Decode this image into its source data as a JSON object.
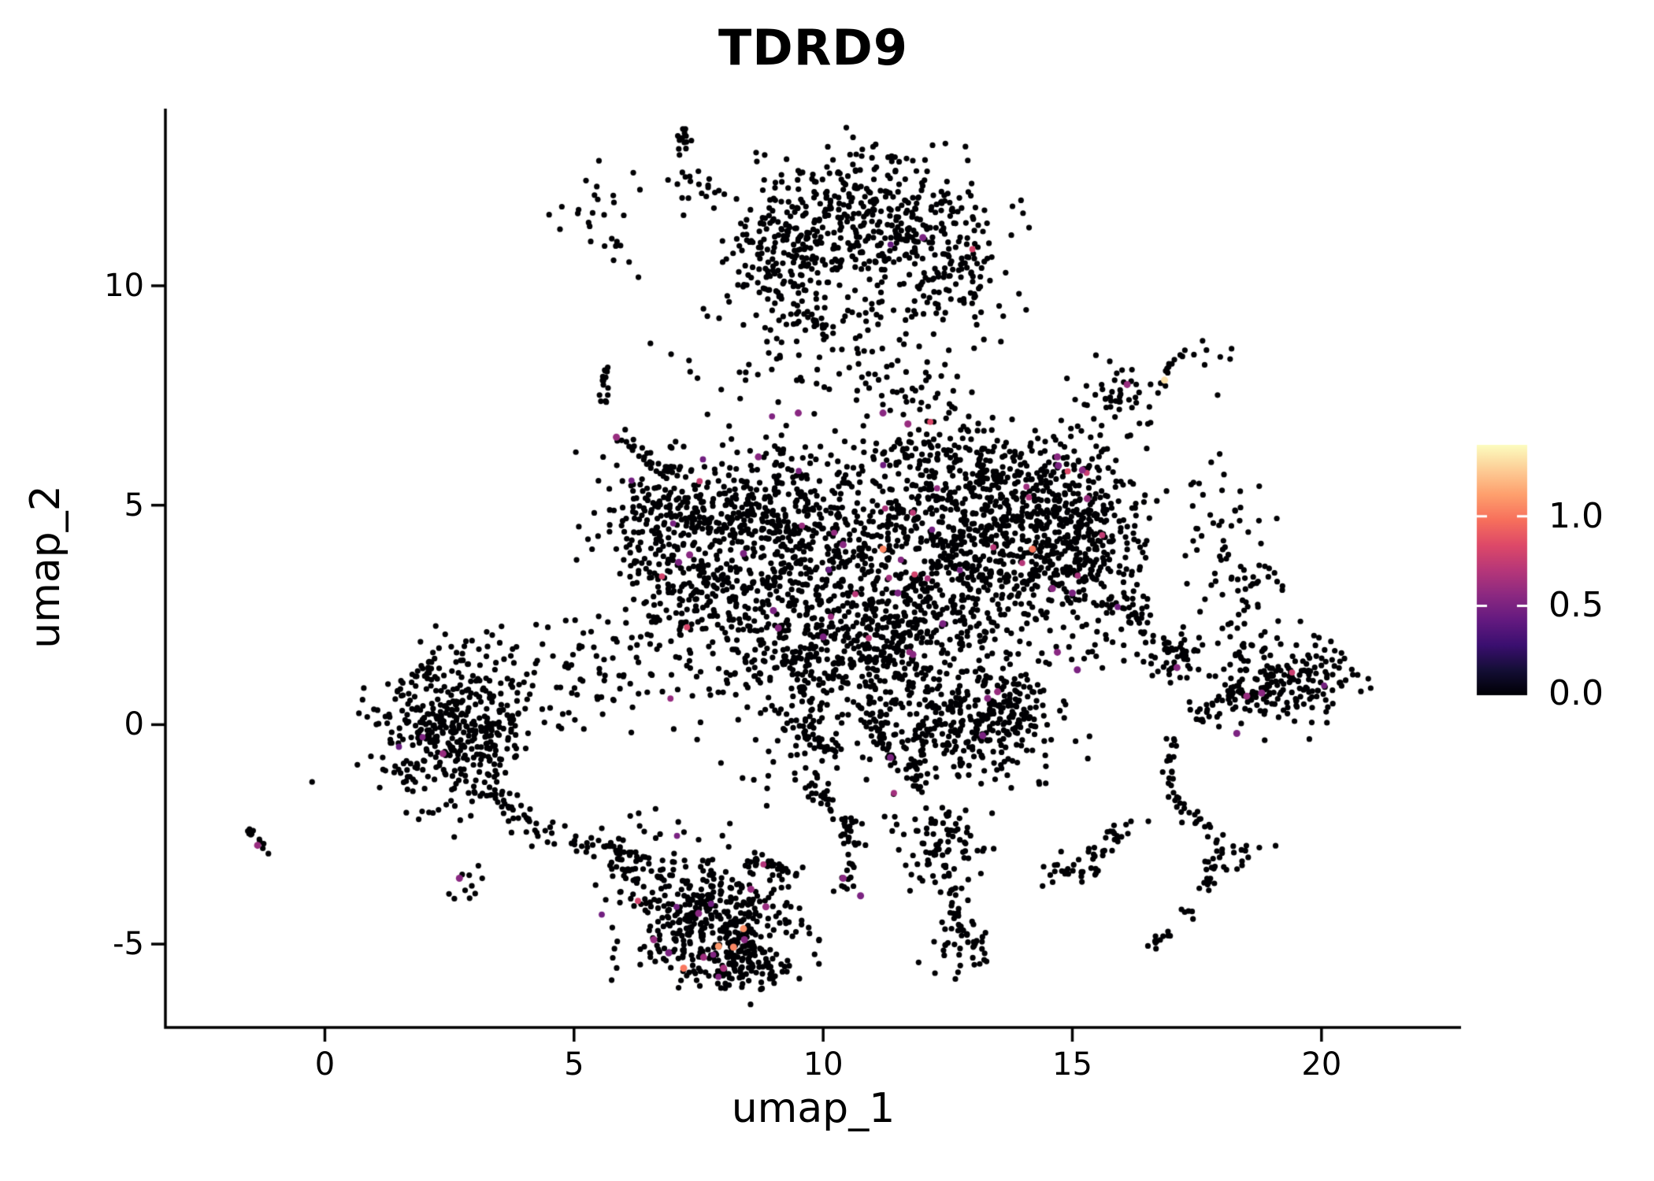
{
  "seed": 42,
  "chart_data": {
    "type": "scatter",
    "title": "TDRD9",
    "xlabel": "umap_1",
    "ylabel": "umap_2",
    "xlim": [
      -3.2,
      22.8
    ],
    "ylim": [
      -6.9,
      14.0
    ],
    "grid": false,
    "legend_position": "right",
    "x_tick_values": [
      0,
      5,
      10,
      15,
      20
    ],
    "x_tick_labels": [
      "0",
      "5",
      "10",
      "15",
      "20"
    ],
    "y_tick_values": [
      10,
      5,
      0,
      -5
    ],
    "y_tick_labels": [
      "10",
      "5",
      "0",
      "-5"
    ],
    "point_color_zero": "#000004",
    "point_radius_px": 3.6,
    "colorbar": {
      "position": "right",
      "vmin": 0.0,
      "vmax": 1.4,
      "tick_values": [
        1.0,
        0.5,
        0.0
      ],
      "tick_labels": [
        "1.0",
        "0.5",
        "0.0"
      ],
      "colormap": "magma",
      "stops": [
        [
          0,
          "#000004"
        ],
        [
          0.1,
          "#140e36"
        ],
        [
          0.2,
          "#3b0f70"
        ],
        [
          0.3,
          "#641a80"
        ],
        [
          0.4,
          "#8c2981"
        ],
        [
          0.5,
          "#b73779"
        ],
        [
          0.6,
          "#de4968"
        ],
        [
          0.7,
          "#f7705c"
        ],
        [
          0.8,
          "#fe9f6d"
        ],
        [
          0.9,
          "#fdcd96"
        ],
        [
          1,
          "#fcfdbf"
        ]
      ]
    },
    "clusters": [
      {
        "kind": "blob",
        "name": "top-core",
        "c": [
          10.6,
          11.3
        ],
        "sd": [
          1.15,
          0.85
        ],
        "n": 420,
        "cf": 0.005
      },
      {
        "kind": "blob",
        "name": "top-right-lobe",
        "c": [
          12.6,
          10.5
        ],
        "sd": [
          0.7,
          0.9
        ],
        "n": 140,
        "cf": 0.004
      },
      {
        "kind": "blob",
        "name": "top-left-lobe",
        "c": [
          9.0,
          10.7
        ],
        "sd": [
          0.6,
          0.65
        ],
        "n": 90,
        "cf": 0
      },
      {
        "kind": "blob",
        "name": "top-small-clump",
        "c": [
          7.6,
          12.2
        ],
        "sd": [
          0.3,
          0.25
        ],
        "n": 18,
        "cf": 0
      },
      {
        "kind": "blob",
        "name": "top-far-left",
        "c": [
          5.6,
          11.6
        ],
        "sd": [
          0.45,
          0.7
        ],
        "n": 28,
        "cf": 0
      },
      {
        "kind": "blob",
        "name": "top-bridge",
        "c": [
          10.3,
          8.6
        ],
        "sd": [
          1.4,
          0.75
        ],
        "n": 100,
        "cf": 0.005
      },
      {
        "kind": "blob",
        "name": "upper-right-islet",
        "c": [
          15.9,
          7.55
        ],
        "sd": [
          0.5,
          0.33
        ],
        "n": 45,
        "cf": 0
      },
      {
        "kind": "blob",
        "name": "upper-right-dots",
        "c": [
          17.9,
          8.5
        ],
        "sd": [
          0.25,
          0.18
        ],
        "n": 7,
        "cf": 0
      },
      {
        "kind": "blob",
        "name": "mid-left",
        "c": [
          8.7,
          4.7
        ],
        "sd": [
          1.05,
          0.9
        ],
        "n": 420,
        "cf": 0.012
      },
      {
        "kind": "blob",
        "name": "mid-center",
        "c": [
          11.3,
          3.1
        ],
        "sd": [
          1.5,
          1.25
        ],
        "n": 650,
        "cf": 0.013
      },
      {
        "kind": "blob",
        "name": "mid-right",
        "c": [
          13.7,
          4.3
        ],
        "sd": [
          1.15,
          1.0
        ],
        "n": 520,
        "cf": 0.012
      },
      {
        "kind": "blob",
        "name": "mid-lower",
        "c": [
          10.3,
          1.3
        ],
        "sd": [
          1.2,
          0.95
        ],
        "n": 330,
        "cf": 0.012
      },
      {
        "kind": "blob",
        "name": "mid-left-arm-low",
        "c": [
          7.4,
          2.9
        ],
        "sd": [
          0.8,
          0.9
        ],
        "n": 180,
        "cf": 0.01
      },
      {
        "kind": "blob",
        "name": "mid-left-arm-up",
        "c": [
          6.7,
          4.6
        ],
        "sd": [
          0.55,
          0.6
        ],
        "n": 120,
        "cf": 0.008
      },
      {
        "kind": "blob",
        "name": "mid-top-shelf",
        "c": [
          12.5,
          5.9
        ],
        "sd": [
          0.95,
          0.55
        ],
        "n": 160,
        "cf": 0.008
      },
      {
        "kind": "blob",
        "name": "mid-right-top-lobe",
        "c": [
          14.9,
          5.3
        ],
        "sd": [
          0.6,
          0.7
        ],
        "n": 140,
        "cf": 0.012
      },
      {
        "kind": "blob",
        "name": "mid-right-lobe",
        "c": [
          15.5,
          3.6
        ],
        "sd": [
          0.6,
          0.95
        ],
        "n": 150,
        "cf": 0.012
      },
      {
        "kind": "blob",
        "name": "low-mid-lobe",
        "c": [
          12.45,
          -0.1
        ],
        "sd": [
          0.6,
          0.6
        ],
        "n": 130,
        "cf": 0.01
      },
      {
        "kind": "blob",
        "name": "low-mid-right-lobe",
        "c": [
          13.7,
          0.2
        ],
        "sd": [
          0.55,
          0.65
        ],
        "n": 170,
        "cf": 0.01
      },
      {
        "kind": "blob",
        "name": "mid-sparse-fill",
        "c": [
          10.8,
          3.2
        ],
        "sd": [
          2.6,
          2.2
        ],
        "n": 240,
        "cf": 0.008
      },
      {
        "kind": "blob",
        "name": "below-chain-clump",
        "c": [
          12.35,
          -2.8
        ],
        "sd": [
          0.45,
          0.6
        ],
        "n": 90,
        "cf": 0
      },
      {
        "kind": "blob",
        "name": "below-chain-tip",
        "c": [
          12.9,
          -5.0
        ],
        "sd": [
          0.3,
          0.28
        ],
        "n": 40,
        "cf": 0
      },
      {
        "kind": "blob",
        "name": "left-cluster",
        "c": [
          2.6,
          -0.1
        ],
        "sd": [
          0.78,
          0.82
        ],
        "n": 430,
        "cf": 0.004
      },
      {
        "kind": "blob",
        "name": "left-bridge",
        "c": [
          5.0,
          1.2
        ],
        "sd": [
          0.7,
          0.65
        ],
        "n": 65,
        "cf": 0
      },
      {
        "kind": "blob",
        "name": "left-stray",
        "c": [
          2.9,
          -3.6
        ],
        "sd": [
          0.35,
          0.3
        ],
        "n": 10,
        "cf": 0
      },
      {
        "kind": "blob",
        "name": "bottom-core",
        "c": [
          7.8,
          -4.6
        ],
        "sd": [
          0.78,
          0.62
        ],
        "n": 380,
        "cf": 0.015
      },
      {
        "kind": "blob",
        "name": "bottom-tip",
        "c": [
          8.3,
          -5.5
        ],
        "sd": [
          0.5,
          0.3
        ],
        "n": 90,
        "cf": 0.01
      },
      {
        "kind": "blob",
        "name": "bottom-top-fringe",
        "c": [
          7.0,
          -3.3
        ],
        "sd": [
          0.8,
          0.5
        ],
        "n": 90,
        "cf": 0.008
      },
      {
        "kind": "blob",
        "name": "right-cluster",
        "c": [
          19.2,
          1.0
        ],
        "sd": [
          0.8,
          0.5
        ],
        "n": 210,
        "cf": 0.004
      },
      {
        "kind": "blob",
        "name": "right-upper-sparse",
        "c": [
          17.9,
          4.5
        ],
        "sd": [
          0.5,
          0.85
        ],
        "n": 45,
        "cf": 0
      },
      {
        "kind": "blob",
        "name": "right-upper-sparse2",
        "c": [
          18.6,
          2.9
        ],
        "sd": [
          0.4,
          0.5
        ],
        "n": 35,
        "cf": 0
      },
      {
        "kind": "blob",
        "name": "right-tip-clump",
        "c": [
          17.0,
          1.6
        ],
        "sd": [
          0.35,
          0.35
        ],
        "n": 30,
        "cf": 0
      },
      {
        "kind": "blob",
        "name": "right-chain-clump1",
        "c": [
          15.0,
          -3.3
        ],
        "sd": [
          0.32,
          0.27
        ],
        "n": 25,
        "cf": 0
      },
      {
        "kind": "blob",
        "name": "right-chain-clump2",
        "c": [
          18.4,
          -2.9
        ],
        "sd": [
          0.25,
          0.2
        ],
        "n": 14,
        "cf": 0
      },
      {
        "kind": "blob",
        "name": "mid-upper-scatter",
        "c": [
          12.2,
          7.3
        ],
        "sd": [
          0.5,
          0.5
        ],
        "n": 30,
        "cf": 0
      },
      {
        "kind": "strip",
        "name": "top-dash-left",
        "a": [
          7.1,
          12.8
        ],
        "b": [
          7.25,
          13.6
        ],
        "j": 0.07,
        "n": 13
      },
      {
        "kind": "strip",
        "name": "top-dash-right",
        "a": [
          11.35,
          13.05
        ],
        "b": [
          11.45,
          12.6
        ],
        "j": 0.05,
        "n": 8
      },
      {
        "kind": "strip",
        "name": "bridge-arc",
        "a": [
          9.4,
          9.5
        ],
        "b": [
          10.2,
          8.85
        ],
        "j": 0.1,
        "n": 22
      },
      {
        "kind": "strip",
        "name": "left-vert-streak",
        "a": [
          5.58,
          8.2
        ],
        "b": [
          5.66,
          7.3
        ],
        "j": 0.06,
        "n": 15
      },
      {
        "kind": "strip",
        "name": "upper-right-dash",
        "a": [
          16.85,
          8.05
        ],
        "b": [
          17.3,
          8.55
        ],
        "j": 0.05,
        "n": 10
      },
      {
        "kind": "strip",
        "name": "diag-string",
        "a": [
          5.85,
          6.55
        ],
        "b": [
          7.05,
          5.6
        ],
        "j": 0.08,
        "n": 30
      },
      {
        "kind": "strip",
        "name": "mid-low-chain",
        "a": [
          9.3,
          0.1
        ],
        "b": [
          10.35,
          -0.65
        ],
        "j": 0.12,
        "n": 38
      },
      {
        "kind": "strip",
        "name": "mid-vert-chain",
        "a": [
          11.0,
          0.35
        ],
        "b": [
          11.35,
          -0.9
        ],
        "j": 0.08,
        "n": 24
      },
      {
        "kind": "strip",
        "name": "smile-arc",
        "a": [
          8.5,
          -3.05
        ],
        "b": [
          9.45,
          -3.45
        ],
        "j": 0.07,
        "n": 32
      },
      {
        "kind": "strip",
        "name": "below-chain-a",
        "a": [
          9.6,
          -1.2
        ],
        "b": [
          10.6,
          -2.3
        ],
        "j": 0.12,
        "n": 36
      },
      {
        "kind": "strip",
        "name": "below-chain-b",
        "a": [
          10.6,
          -2.3
        ],
        "b": [
          10.5,
          -3.9
        ],
        "j": 0.1,
        "n": 26
      },
      {
        "kind": "strip",
        "name": "below-vert-chain",
        "a": [
          11.7,
          -0.35
        ],
        "b": [
          11.95,
          -1.6
        ],
        "j": 0.07,
        "n": 22
      },
      {
        "kind": "strip",
        "name": "below-chain-c",
        "a": [
          12.55,
          -3.6
        ],
        "b": [
          12.75,
          -4.7
        ],
        "j": 0.07,
        "n": 18
      },
      {
        "kind": "strip",
        "name": "left-top-tail",
        "a": [
          1.5,
          0.65
        ],
        "b": [
          2.2,
          1.45
        ],
        "j": 0.12,
        "n": 22
      },
      {
        "kind": "strip",
        "name": "left-down-tail",
        "a": [
          3.2,
          -1.4
        ],
        "b": [
          4.45,
          -2.6
        ],
        "j": 0.16,
        "n": 40
      },
      {
        "kind": "strip",
        "name": "bottom-left-fringe",
        "a": [
          5.6,
          -2.6
        ],
        "b": [
          6.4,
          -3.6
        ],
        "j": 0.18,
        "n": 26
      },
      {
        "kind": "strip",
        "name": "bottom-bridge",
        "a": [
          4.7,
          -2.9
        ],
        "b": [
          5.5,
          -2.55
        ],
        "j": 0.15,
        "n": 14
      },
      {
        "kind": "strip",
        "name": "right-cluster-tip",
        "a": [
          17.5,
          0.2
        ],
        "b": [
          18.35,
          0.8
        ],
        "j": 0.12,
        "n": 30
      },
      {
        "kind": "strip",
        "name": "right-arc-in",
        "a": [
          16.0,
          2.6
        ],
        "b": [
          17.25,
          1.45
        ],
        "j": 0.15,
        "n": 34
      },
      {
        "kind": "strip",
        "name": "right-chain-a",
        "a": [
          17.0,
          -0.3
        ],
        "b": [
          16.9,
          -1.6
        ],
        "j": 0.07,
        "n": 18
      },
      {
        "kind": "strip",
        "name": "right-chain-b",
        "a": [
          16.9,
          -1.6
        ],
        "b": [
          17.95,
          -2.6
        ],
        "j": 0.09,
        "n": 22
      },
      {
        "kind": "strip",
        "name": "right-chain-c",
        "a": [
          17.95,
          -2.6
        ],
        "b": [
          17.6,
          -4.05
        ],
        "j": 0.09,
        "n": 20
      },
      {
        "kind": "strip",
        "name": "right-chain-d",
        "a": [
          16.2,
          -2.2
        ],
        "b": [
          15.3,
          -3.1
        ],
        "j": 0.11,
        "n": 26
      },
      {
        "kind": "strip",
        "name": "right-chain-e",
        "a": [
          17.3,
          -4.2
        ],
        "b": [
          16.6,
          -5.05
        ],
        "j": 0.09,
        "n": 16
      },
      {
        "kind": "strip",
        "name": "far-left-streak",
        "a": [
          -1.6,
          -2.3
        ],
        "b": [
          -1.1,
          -2.95
        ],
        "j": 0.05,
        "n": 12
      }
    ],
    "highlight_points": [
      [
        5.85,
        6.55,
        0.6
      ],
      [
        8.7,
        6.1,
        0.55
      ],
      [
        9.5,
        7.1,
        0.55
      ],
      [
        12.0,
        11.1,
        0.5
      ],
      [
        11.2,
        7.1,
        0.55
      ],
      [
        11.7,
        6.85,
        0.6
      ],
      [
        16.1,
        7.75,
        0.6
      ],
      [
        16.85,
        7.85,
        1.32
      ],
      [
        7.1,
        3.7,
        0.5
      ],
      [
        7.32,
        3.87,
        0.55
      ],
      [
        8.4,
        3.9,
        0.5
      ],
      [
        9.0,
        2.6,
        0.5
      ],
      [
        9.1,
        2.2,
        0.55
      ],
      [
        10.0,
        2.0,
        0.5
      ],
      [
        10.4,
        4.1,
        0.55
      ],
      [
        11.2,
        4.0,
        1.05
      ],
      [
        11.5,
        3.0,
        0.5
      ],
      [
        11.8,
        1.6,
        0.55
      ],
      [
        12.4,
        2.3,
        0.5
      ],
      [
        14.2,
        4.0,
        1.0
      ],
      [
        14.7,
        6.1,
        0.55
      ],
      [
        14.72,
        5.9,
        0.5
      ],
      [
        15.2,
        5.8,
        0.55
      ],
      [
        15.3,
        5.15,
        0.6
      ],
      [
        14.6,
        3.1,
        0.55
      ],
      [
        15.0,
        3.0,
        0.5
      ],
      [
        14.7,
        1.65,
        0.55
      ],
      [
        15.1,
        1.25,
        0.5
      ],
      [
        13.3,
        0.6,
        0.55
      ],
      [
        13.5,
        0.75,
        0.6
      ],
      [
        13.2,
        -0.25,
        0.5
      ],
      [
        11.35,
        -0.75,
        0.5
      ],
      [
        10.4,
        -3.5,
        0.55
      ],
      [
        10.75,
        -3.9,
        0.5
      ],
      [
        2.37,
        -0.66,
        0.6
      ],
      [
        2.7,
        -3.5,
        0.55
      ],
      [
        -1.35,
        -2.75,
        0.6
      ],
      [
        6.6,
        -4.9,
        0.6
      ],
      [
        7.5,
        -4.3,
        0.55
      ],
      [
        8.55,
        -3.75,
        0.6
      ],
      [
        7.6,
        -5.3,
        0.62
      ],
      [
        8.0,
        -5.55,
        0.65
      ],
      [
        8.42,
        -4.9,
        0.55
      ],
      [
        6.9,
        -5.2,
        0.5
      ],
      [
        8.85,
        -4.15,
        0.6
      ],
      [
        7.9,
        -5.05,
        1.1
      ],
      [
        8.2,
        -5.07,
        1.05
      ],
      [
        7.2,
        -5.55,
        1.0
      ],
      [
        8.4,
        -4.65,
        1.08
      ],
      [
        18.5,
        0.65,
        0.6
      ],
      [
        18.8,
        0.72,
        0.55
      ],
      [
        18.3,
        -0.2,
        0.5
      ],
      [
        17.1,
        1.3,
        0.55
      ]
    ]
  }
}
